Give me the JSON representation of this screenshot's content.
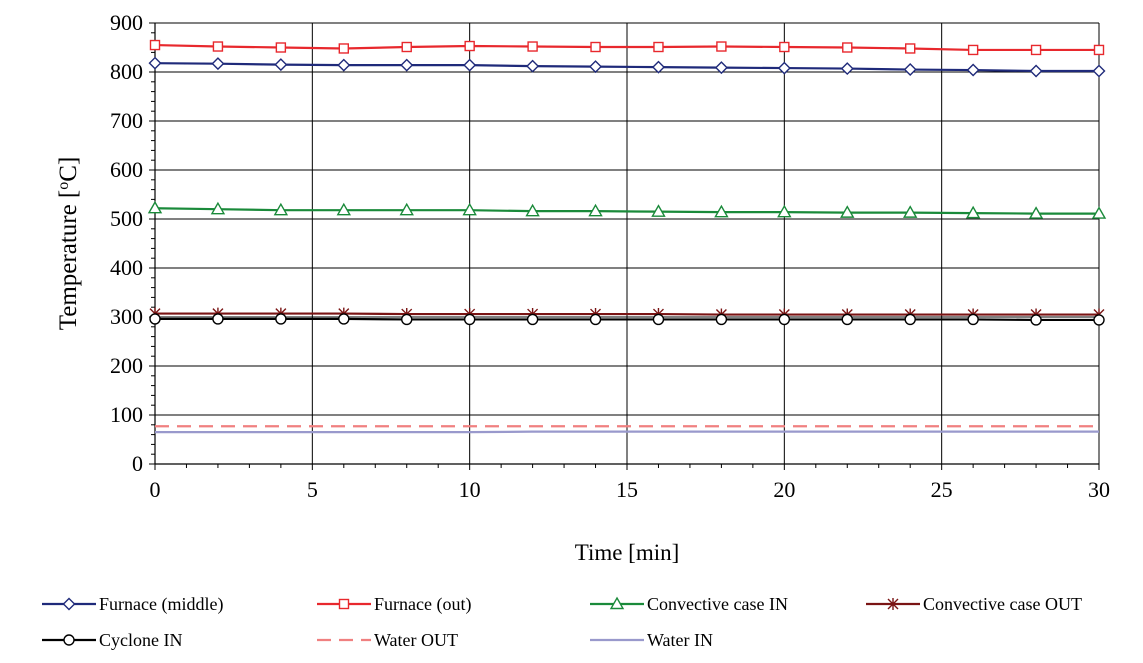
{
  "chart_data": {
    "type": "line",
    "title": "",
    "xlabel": "Time [min]",
    "ylabel_main": "Temperature [",
    "ylabel_sup": "o",
    "ylabel_end": "C]",
    "xlim": [
      0,
      30
    ],
    "ylim": [
      0,
      900
    ],
    "xticks": [
      0,
      5,
      10,
      15,
      20,
      25,
      30
    ],
    "yticks": [
      0,
      100,
      200,
      300,
      400,
      500,
      600,
      700,
      800,
      900
    ],
    "grid": true,
    "legend_position": "bottom",
    "x": [
      0,
      2,
      4,
      6,
      8,
      10,
      12,
      14,
      16,
      18,
      20,
      22,
      24,
      26,
      28,
      30
    ],
    "series": [
      {
        "name": "Furnace (middle)",
        "color": "#1f2a7a",
        "marker": "diamond",
        "dash": "solid",
        "values": [
          818,
          817,
          815,
          814,
          814,
          814,
          812,
          811,
          810,
          809,
          808,
          807,
          805,
          804,
          802,
          802
        ]
      },
      {
        "name": "Furnace (out)",
        "color": "#e8282d",
        "marker": "square",
        "dash": "solid",
        "values": [
          855,
          852,
          850,
          848,
          851,
          853,
          852,
          851,
          851,
          852,
          851,
          850,
          848,
          845,
          845,
          845
        ]
      },
      {
        "name": "Convective case IN",
        "color": "#1a8a3a",
        "marker": "triangle",
        "dash": "solid",
        "values": [
          522,
          520,
          518,
          518,
          518,
          518,
          516,
          516,
          515,
          514,
          514,
          513,
          513,
          512,
          511,
          511
        ]
      },
      {
        "name": "Convective case OUT",
        "color": "#7a1414",
        "marker": "star",
        "dash": "solid",
        "values": [
          307,
          307,
          307,
          307,
          306,
          306,
          306,
          306,
          306,
          305,
          305,
          305,
          305,
          305,
          305,
          305
        ]
      },
      {
        "name": "Cyclone IN",
        "color": "#000000",
        "marker": "circle",
        "dash": "solid",
        "values": [
          296,
          296,
          296,
          296,
          295,
          295,
          295,
          295,
          295,
          295,
          295,
          295,
          295,
          295,
          294,
          294
        ]
      },
      {
        "name": "Water OUT",
        "color": "#f08080",
        "marker": "none",
        "dash": "dashed",
        "values": [
          77,
          77,
          77,
          77,
          77,
          77,
          77,
          77,
          77,
          77,
          77,
          77,
          77,
          77,
          77,
          77
        ]
      },
      {
        "name": "Water IN",
        "color": "#9999cc",
        "marker": "none",
        "dash": "solid",
        "values": [
          65,
          65,
          65,
          65,
          65,
          65,
          66,
          66,
          66,
          66,
          66,
          66,
          66,
          66,
          66,
          66
        ]
      }
    ]
  }
}
